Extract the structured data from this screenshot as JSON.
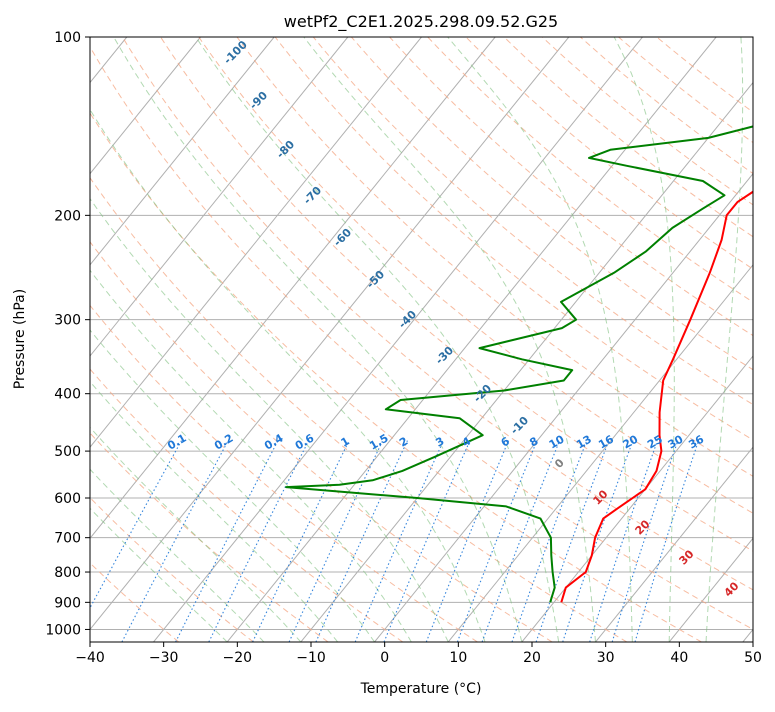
{
  "chart_data": {
    "type": "line",
    "chart_kind": "skew-t log-p",
    "title": "wetPf2_C2E1.2025.298.09.52.G25",
    "xlabel": "Temperature (°C)",
    "ylabel": "Pressure (hPa)",
    "xlim": [
      -40,
      50
    ],
    "ylim": [
      1050,
      100
    ],
    "y_scale": "log",
    "x_ticks": [
      "−40",
      "−30",
      "−20",
      "−10",
      "0",
      "10",
      "20",
      "30",
      "40",
      "50"
    ],
    "y_ticks": [
      "100",
      "200",
      "300",
      "400",
      "500",
      "600",
      "700",
      "800",
      "900",
      "1000"
    ],
    "grid": true,
    "series": [
      {
        "color": "#ff0000",
        "points": [
          [
            21,
            900
          ],
          [
            20,
            850
          ],
          [
            21,
            800
          ],
          [
            20,
            750
          ],
          [
            18.5,
            700
          ],
          [
            17.5,
            650
          ],
          [
            18.5,
            620
          ],
          [
            20,
            580
          ],
          [
            19.5,
            540
          ],
          [
            18,
            500
          ],
          [
            16,
            470
          ],
          [
            13.5,
            430
          ],
          [
            10.5,
            380
          ],
          [
            9.5,
            350
          ],
          [
            7.5,
            300
          ],
          [
            5,
            250
          ],
          [
            3,
            220
          ],
          [
            1,
            200
          ],
          [
            1,
            190
          ],
          [
            3,
            175
          ],
          [
            6.5,
            160
          ],
          [
            7,
            145
          ],
          [
            5,
            130
          ],
          [
            4.5,
            120
          ],
          [
            5.5,
            110
          ],
          [
            7,
            100
          ]
        ]
      },
      {
        "color": "#008000",
        "points": [
          [
            19.5,
            900
          ],
          [
            18.5,
            850
          ],
          [
            16.5,
            800
          ],
          [
            14.5,
            750
          ],
          [
            12.5,
            700
          ],
          [
            9,
            650
          ],
          [
            3,
            620
          ],
          [
            -10,
            600
          ],
          [
            -29,
            575
          ],
          [
            -22,
            570
          ],
          [
            -18,
            560
          ],
          [
            -15,
            540
          ],
          [
            -12,
            510
          ],
          [
            -8,
            470
          ],
          [
            -13,
            440
          ],
          [
            -24,
            425
          ],
          [
            -23,
            410
          ],
          [
            -10,
            395
          ],
          [
            -3,
            380
          ],
          [
            -3,
            365
          ],
          [
            -11,
            350
          ],
          [
            -18,
            335
          ],
          [
            -9,
            310
          ],
          [
            -8,
            300
          ],
          [
            -12,
            280
          ],
          [
            -8,
            250
          ],
          [
            -6,
            230
          ],
          [
            -5,
            210
          ],
          [
            -3,
            195
          ],
          [
            -1.5,
            185
          ],
          [
            -6,
            175
          ],
          [
            -18,
            165
          ],
          [
            -24,
            160
          ],
          [
            -22,
            155
          ],
          [
            -10,
            148
          ],
          [
            -4,
            140
          ],
          [
            -1,
            130
          ],
          [
            0,
            120
          ],
          [
            2,
            110
          ],
          [
            4,
            100
          ]
        ]
      }
    ],
    "isotherm_skew_deg_per_decade": 65,
    "mixing_ratio_labels": [
      "0.1",
      "0.2",
      "0.4",
      "0.6",
      "1",
      "1.5",
      "2",
      "3",
      "4",
      "6",
      "8",
      "10",
      "13",
      "16",
      "20",
      "25",
      "30",
      "36"
    ],
    "dry_adiabat_labels": [
      "-100",
      "-90",
      "-80",
      "-70",
      "-60",
      "-50",
      "-40",
      "-30",
      "-20",
      "-10"
    ],
    "moist_adiabat_labels": [
      "0",
      "10",
      "20",
      "30",
      "40"
    ],
    "colors": {
      "temperature": "#ff0000",
      "dewpoint": "#008000",
      "dry_adiabat": "#f4a582",
      "moist_adiabat": "#7fbf7f",
      "mixing_ratio": "#1f78d8",
      "dry_label": "#2c6fa3",
      "moist_label": "#d62728",
      "grid": "#b0b0b0"
    }
  }
}
